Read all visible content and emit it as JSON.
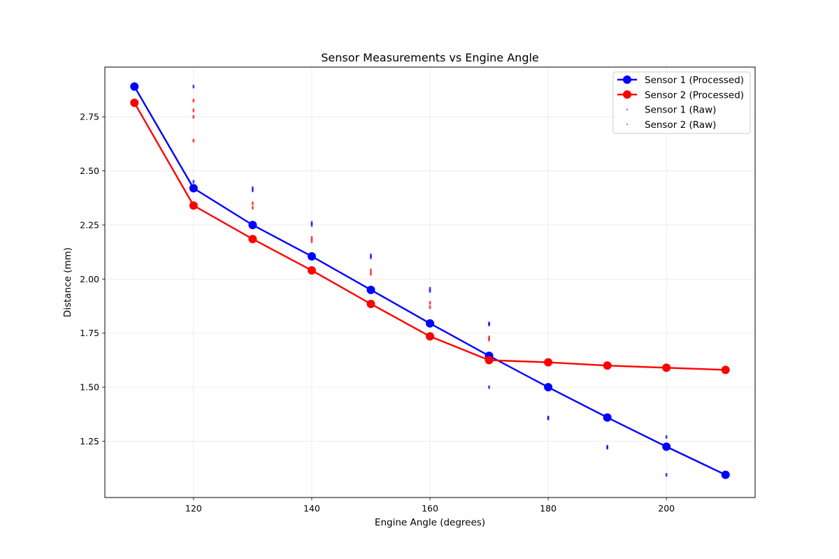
{
  "chart_data": {
    "type": "line",
    "title": "Sensor Measurements vs Engine Angle",
    "xlabel": "Engine Angle (degrees)",
    "ylabel": "Distance (mm)",
    "xlim": [
      105,
      215
    ],
    "ylim": [
      0.99,
      2.98
    ],
    "xticks": [
      120,
      140,
      160,
      180,
      200
    ],
    "yticks": [
      1.25,
      1.5,
      1.75,
      2.0,
      2.25,
      2.5,
      2.75
    ],
    "grid": true,
    "legend_position": "top-right",
    "series": [
      {
        "name": "Sensor 1 (Processed)",
        "color": "#0000ff",
        "style": "line-marker",
        "x": [
          110,
          120,
          130,
          140,
          150,
          160,
          170,
          180,
          190,
          200,
          210
        ],
        "y": [
          2.89,
          2.42,
          2.25,
          2.105,
          1.95,
          1.795,
          1.645,
          1.5,
          1.36,
          1.225,
          1.095
        ]
      },
      {
        "name": "Sensor 2 (Processed)",
        "color": "#ff0000",
        "style": "line-marker",
        "x": [
          110,
          120,
          130,
          140,
          150,
          160,
          170,
          180,
          190,
          200,
          210
        ],
        "y": [
          2.815,
          2.34,
          2.185,
          2.04,
          1.885,
          1.735,
          1.625,
          1.615,
          1.6,
          1.59,
          1.58
        ]
      },
      {
        "name": "Sensor 1 (Raw)",
        "color": "#0000ff",
        "style": "scatter",
        "x": [
          120,
          120,
          120,
          130,
          130,
          140,
          140,
          150,
          150,
          160,
          160,
          170,
          170,
          170,
          180,
          180,
          190,
          190,
          200,
          200,
          200
        ],
        "y": [
          2.89,
          2.45,
          2.41,
          2.42,
          2.41,
          2.26,
          2.25,
          2.11,
          2.1,
          1.955,
          1.945,
          1.795,
          1.79,
          1.5,
          1.36,
          1.355,
          1.225,
          1.22,
          1.27,
          1.23,
          1.095
        ]
      },
      {
        "name": "Sensor 2 (Raw)",
        "color": "#ff0000",
        "style": "scatter",
        "x": [
          120,
          120,
          120,
          120,
          130,
          130,
          140,
          140,
          150,
          150,
          160,
          160,
          170,
          170
        ],
        "y": [
          2.825,
          2.78,
          2.75,
          2.64,
          2.35,
          2.33,
          2.19,
          2.175,
          2.04,
          2.025,
          1.89,
          1.87,
          1.73,
          1.72
        ]
      }
    ]
  }
}
